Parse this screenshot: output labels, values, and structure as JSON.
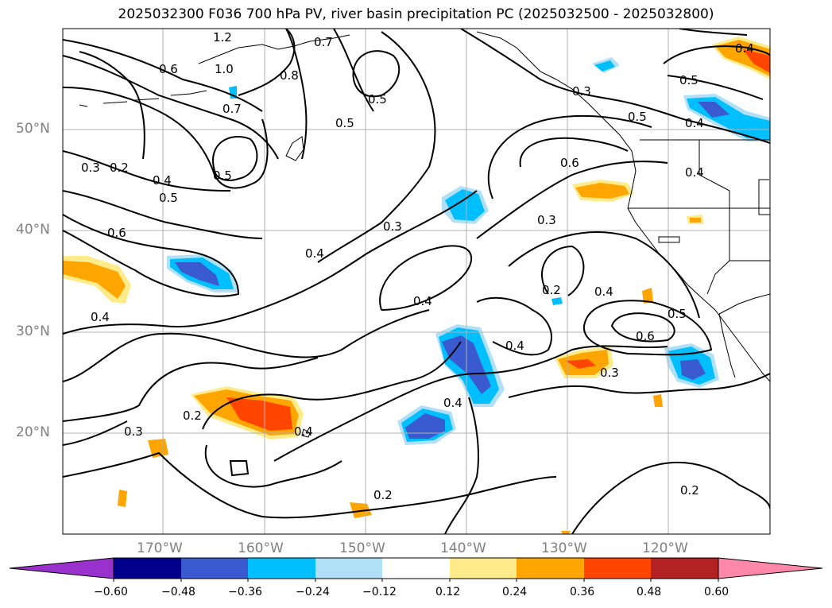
{
  "title": "2025032300 F036 700 hPa PV, river basin precipitation PC (2025032500 - 2025032800)",
  "map": {
    "lon_ticks": [
      "170°W",
      "160°W",
      "150°W",
      "140°W",
      "130°W",
      "120°W"
    ],
    "lat_ticks": [
      "50°N",
      "40°N",
      "30°N",
      "20°N"
    ],
    "contour_labels": [
      "1.2",
      "0.7",
      "1.0",
      "0.6",
      "0.8",
      "0.7",
      "0.5",
      "0.5",
      "0.3",
      "0.2",
      "0.4",
      "0.5",
      "0.5",
      "0.6",
      "0.3",
      "0.4",
      "0.4",
      "0.4",
      "0.4",
      "0.3",
      "0.6",
      "0.3",
      "0.2",
      "0.2",
      "0.2",
      "0.4",
      "0.4",
      "0.3",
      "0.5",
      "0.5",
      "0.4",
      "0.4",
      "0.6",
      "0.4",
      "0.5",
      "0.3",
      "0.2",
      "0.4"
    ]
  },
  "colorbar": {
    "ticks": [
      "−0.60",
      "−0.48",
      "−0.36",
      "−0.24",
      "−0.12",
      "0.12",
      "0.24",
      "0.36",
      "0.48",
      "0.60"
    ],
    "colors": [
      "#9932cc",
      "#00008b",
      "#3a5bd0",
      "#00bfff",
      "#b0e0f8",
      "#ffffff",
      "#ffeb8a",
      "#ffa500",
      "#ff4500",
      "#b22222",
      "#ff88aa"
    ]
  },
  "shading_colors": {
    "neg_light": "#b0e0f8",
    "neg_mid": "#00bfff",
    "neg_strong": "#3a5bd0",
    "pos_light": "#ffeb8a",
    "pos_mid": "#ffa500",
    "pos_strong": "#ff4500",
    "pos_stronger": "#b22222"
  }
}
